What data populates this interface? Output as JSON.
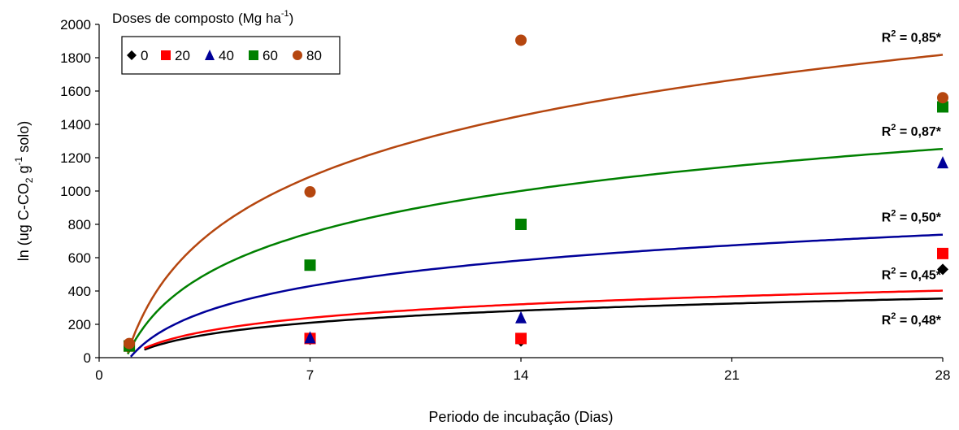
{
  "chart_data": {
    "type": "scatter",
    "xlabel": "Periodo de incubação (Dias)",
    "ylabel": {
      "main": "ln (ug C-CO",
      "sub2": "2",
      "mid": " g",
      "sup": "-1",
      "end": " solo)"
    },
    "xlim": [
      0,
      28
    ],
    "ylim": [
      0,
      2000
    ],
    "xticks": [
      0,
      7,
      14,
      21,
      28
    ],
    "yticks": [
      0,
      200,
      400,
      600,
      800,
      1000,
      1200,
      1400,
      1600,
      1800,
      2000
    ],
    "grid": false,
    "legend": {
      "title": "Doses de composto (Mg ha",
      "title_sup": "-1",
      "title_end": ")",
      "placement": "top-left"
    },
    "series": [
      {
        "name": "0",
        "marker": "diamond",
        "color": "#000000",
        "x": [
          1,
          7,
          14,
          28
        ],
        "y": [
          70,
          110,
          100,
          530
        ],
        "fit": {
          "a": 105,
          "b": 5,
          "x_start": 1.5
        },
        "r2_label": "0,48*"
      },
      {
        "name": "20",
        "marker": "square",
        "color": "#ff0000",
        "x": [
          1,
          7,
          14,
          28
        ],
        "y": [
          70,
          115,
          115,
          625
        ],
        "fit": {
          "a": 118,
          "b": 9,
          "x_start": 1.5
        },
        "r2_label": "0,45*"
      },
      {
        "name": "40",
        "marker": "triangle",
        "color": "#000099",
        "x": [
          1,
          7,
          14,
          28
        ],
        "y": [
          75,
          120,
          240,
          1170
        ],
        "fit": {
          "a": 223,
          "b": -5,
          "x_start": 1.05
        },
        "r2_label": "0,50*"
      },
      {
        "name": "60",
        "marker": "square",
        "color": "#008000",
        "x": [
          1,
          7,
          14,
          28
        ],
        "y": [
          70,
          555,
          800,
          1505
        ],
        "fit": {
          "a": 364,
          "b": 40,
          "x_start": 0.95
        },
        "r2_label": "0,87*"
      },
      {
        "name": "80",
        "marker": "circle",
        "color": "#b5460f",
        "x": [
          1,
          7,
          14,
          28
        ],
        "y": [
          85,
          995,
          1905,
          1560
        ],
        "fit": {
          "a": 528,
          "b": 58,
          "x_start": 0.95
        },
        "r2_label": "0,85*"
      }
    ]
  }
}
